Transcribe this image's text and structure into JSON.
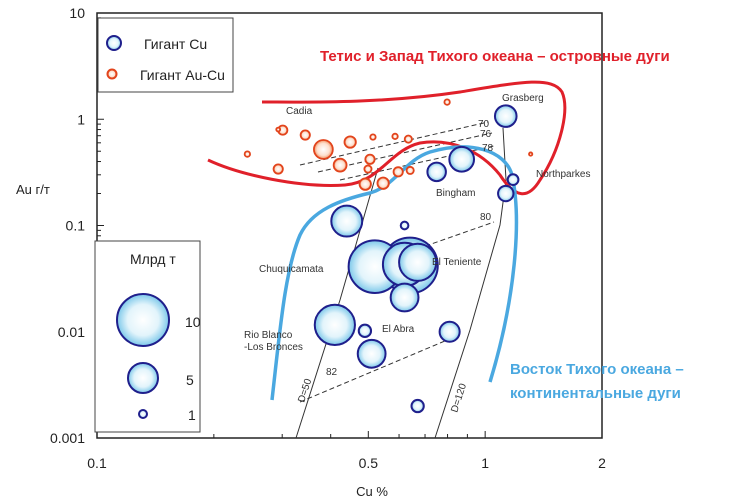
{
  "chart_data": {
    "type": "scatter",
    "title": "",
    "xlabel": "Cu %",
    "ylabel": "Au г/т",
    "xscale": "log",
    "yscale": "log",
    "xlim": [
      0.1,
      2
    ],
    "ylim": [
      0.001,
      10
    ],
    "xticks": [
      "0.1",
      "0.5",
      "1",
      "2"
    ],
    "xtick_values": [
      0.1,
      0.5,
      1,
      2
    ],
    "yticks": [
      "10",
      "1",
      "0.1",
      "0.01",
      "0.001"
    ],
    "ytick_values": [
      10,
      1,
      0.1,
      0.01,
      0.001
    ],
    "grid": false,
    "legend": {
      "placement": "top-left",
      "entries": [
        "Гигант Cu",
        "Гигант Au-Cu"
      ]
    },
    "size_legend": {
      "placement": "bottom-left",
      "title": "Млрд т",
      "labels": [
        "10",
        "5",
        "1"
      ],
      "values": [
        10,
        5,
        1
      ]
    },
    "series": [
      {
        "name": "Гигант Cu",
        "color": "#1f1f8c",
        "points": [
          {
            "x": 1.13,
            "y": 1.07,
            "size": 6
          },
          {
            "x": 0.87,
            "y": 0.42,
            "size": 7
          },
          {
            "x": 0.75,
            "y": 0.32,
            "size": 5
          },
          {
            "x": 1.18,
            "y": 0.27,
            "size": 2.5
          },
          {
            "x": 1.13,
            "y": 0.2,
            "size": 4
          },
          {
            "x": 0.44,
            "y": 0.11,
            "size": 9
          },
          {
            "x": 0.62,
            "y": 0.1,
            "size": 1.5
          },
          {
            "x": 0.64,
            "y": 0.042,
            "size": 17
          },
          {
            "x": 0.52,
            "y": 0.041,
            "size": 16
          },
          {
            "x": 0.62,
            "y": 0.043,
            "size": 13
          },
          {
            "x": 0.67,
            "y": 0.045,
            "size": 11
          },
          {
            "x": 0.62,
            "y": 0.021,
            "size": 8
          },
          {
            "x": 0.41,
            "y": 0.0116,
            "size": 12
          },
          {
            "x": 0.49,
            "y": 0.0102,
            "size": 3
          },
          {
            "x": 0.51,
            "y": 0.0062,
            "size": 8
          },
          {
            "x": 0.81,
            "y": 0.01,
            "size": 5.5
          },
          {
            "x": 0.67,
            "y": 0.002,
            "size": 3
          }
        ]
      },
      {
        "name": "Гигант Au-Cu",
        "color": "#e2441c",
        "points": [
          {
            "x": 0.244,
            "y": 0.47,
            "size": 1
          },
          {
            "x": 0.293,
            "y": 0.8,
            "size": 0.5
          },
          {
            "x": 0.301,
            "y": 0.79,
            "size": 2.3
          },
          {
            "x": 0.344,
            "y": 0.71,
            "size": 2.3
          },
          {
            "x": 0.383,
            "y": 0.52,
            "size": 5.5
          },
          {
            "x": 0.449,
            "y": 0.61,
            "size": 3
          },
          {
            "x": 0.514,
            "y": 0.68,
            "size": 1
          },
          {
            "x": 0.586,
            "y": 0.69,
            "size": 1
          },
          {
            "x": 0.634,
            "y": 0.65,
            "size": 1.6
          },
          {
            "x": 0.798,
            "y": 1.45,
            "size": 1
          },
          {
            "x": 0.293,
            "y": 0.34,
            "size": 2.3
          },
          {
            "x": 0.423,
            "y": 0.37,
            "size": 3.5
          },
          {
            "x": 0.505,
            "y": 0.42,
            "size": 2.3
          },
          {
            "x": 0.499,
            "y": 0.34,
            "size": 1.6
          },
          {
            "x": 0.491,
            "y": 0.245,
            "size": 3
          },
          {
            "x": 0.546,
            "y": 0.25,
            "size": 3
          },
          {
            "x": 0.597,
            "y": 0.32,
            "size": 2.3
          },
          {
            "x": 0.641,
            "y": 0.33,
            "size": 1.6
          },
          {
            "x": 1.31,
            "y": 0.47,
            "size": 0.3
          }
        ]
      }
    ],
    "deposit_labels": [
      "Cadia",
      "Grasberg",
      "Northparkes",
      "Bingham",
      "Chuquicamata",
      "El Teniente",
      "Rio Blanco",
      "-Los Bronces",
      "El Abra"
    ],
    "contour_labels": [
      "70",
      "76",
      "78",
      "80",
      "82",
      "D=50",
      "D=120"
    ],
    "annotations": {
      "red_region": "Тетис и Запад Тихого океана – островные дуги",
      "blue_region_line1": "Восток Тихого океана –",
      "blue_region_line2": "континентальные дуги"
    },
    "colors": {
      "red_region": "#e0202a",
      "blue_region": "#4aa8e0"
    }
  }
}
